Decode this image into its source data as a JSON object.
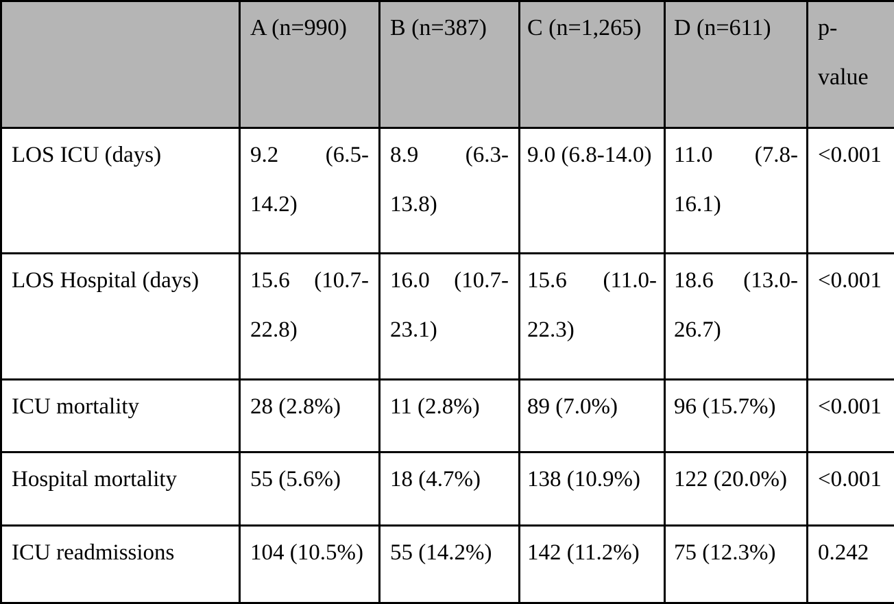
{
  "table": {
    "header": [
      "",
      "A (n=990)",
      "B (n=387)",
      "C (n=1,265)",
      "D (n=611)",
      "p-value"
    ],
    "rows": [
      {
        "label": "LOS ICU (days)",
        "values": [
          "9.2 (6.5-14.2)",
          "8.9 (6.3-13.8)",
          "9.0 (6.8-14.0)",
          "11.0 (7.8-16.1)"
        ],
        "p_value": "<0.001"
      },
      {
        "label": "LOS Hospital (days)",
        "values": [
          "15.6 (10.7-22.8)",
          "16.0 (10.7-23.1)",
          "15.6 (11.0-22.3)",
          "18.6 (13.0-26.7)"
        ],
        "p_value": "<0.001"
      },
      {
        "label": "ICU mortality",
        "values": [
          "28 (2.8%)",
          "11 (2.8%)",
          "89 (7.0%)",
          "96 (15.7%)"
        ],
        "p_value": "<0.001"
      },
      {
        "label": "Hospital mortality",
        "values": [
          "55 (5.6%)",
          "18 (4.7%)",
          "138 (10.9%)",
          "122 (20.0%)"
        ],
        "p_value": "<0.001"
      },
      {
        "label": "ICU readmissions",
        "values": [
          "104 (10.5%)",
          "55 (14.2%)",
          "142 (11.2%)",
          "75 (12.3%)"
        ],
        "p_value": "0.242"
      }
    ],
    "colors": {
      "header_bg": "#b5b5b5",
      "border": "#000000",
      "text": "#000000"
    }
  }
}
